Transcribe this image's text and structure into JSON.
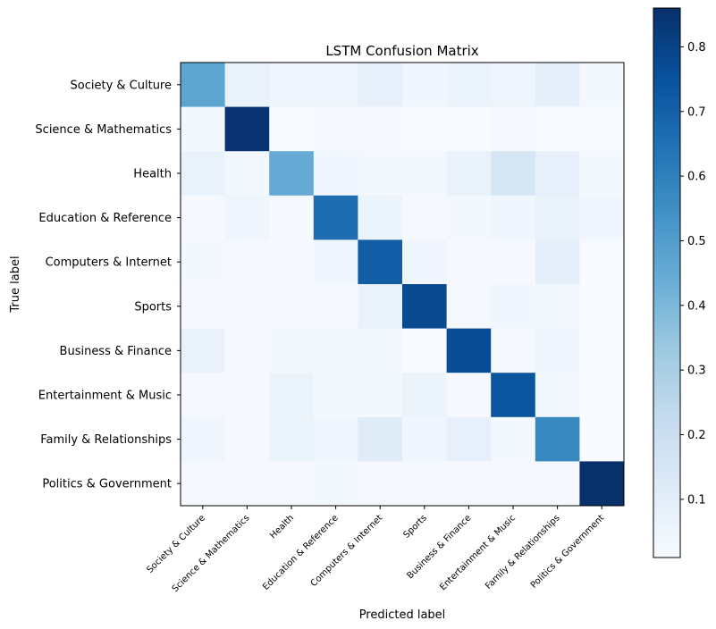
{
  "chart_data": {
    "type": "heatmap",
    "title": "LSTM Confusion Matrix",
    "xlabel": "Predicted label",
    "ylabel": "True label",
    "labels": [
      "Society & Culture",
      "Science & Mathematics",
      "Health",
      "Education & Reference",
      "Computers & Internet",
      "Sports",
      "Business & Finance",
      "Entertainment & Music",
      "Family & Relationships",
      "Politics & Government"
    ],
    "matrix": [
      [
        0.47,
        0.07,
        0.05,
        0.05,
        0.08,
        0.04,
        0.06,
        0.05,
        0.09,
        0.03
      ],
      [
        0.03,
        0.85,
        0.01,
        0.02,
        0.02,
        0.01,
        0.01,
        0.02,
        0.01,
        0.01
      ],
      [
        0.07,
        0.03,
        0.45,
        0.04,
        0.03,
        0.03,
        0.07,
        0.15,
        0.08,
        0.03
      ],
      [
        0.02,
        0.05,
        0.02,
        0.66,
        0.06,
        0.02,
        0.03,
        0.04,
        0.07,
        0.04
      ],
      [
        0.03,
        0.02,
        0.02,
        0.04,
        0.71,
        0.05,
        0.02,
        0.02,
        0.09,
        0.01
      ],
      [
        0.02,
        0.02,
        0.02,
        0.02,
        0.07,
        0.78,
        0.02,
        0.04,
        0.03,
        0.01
      ],
      [
        0.07,
        0.02,
        0.03,
        0.03,
        0.03,
        0.01,
        0.77,
        0.02,
        0.05,
        0.01
      ],
      [
        0.02,
        0.02,
        0.06,
        0.03,
        0.03,
        0.06,
        0.02,
        0.74,
        0.03,
        0.01
      ],
      [
        0.05,
        0.02,
        0.06,
        0.04,
        0.11,
        0.04,
        0.08,
        0.03,
        0.57,
        0.01
      ],
      [
        0.02,
        0.02,
        0.02,
        0.03,
        0.02,
        0.02,
        0.02,
        0.02,
        0.02,
        0.86
      ]
    ],
    "colormap": [
      "#f7fbff",
      "#deebf7",
      "#c6dbef",
      "#9ecae1",
      "#6baed6",
      "#4292c6",
      "#2171b5",
      "#08519c",
      "#08306b"
    ],
    "vmin": 0.01,
    "vmax": 0.86,
    "colorbar_ticks": [
      0.1,
      0.2,
      0.3,
      0.4,
      0.5,
      0.6,
      0.7,
      0.8
    ],
    "grid": false
  }
}
